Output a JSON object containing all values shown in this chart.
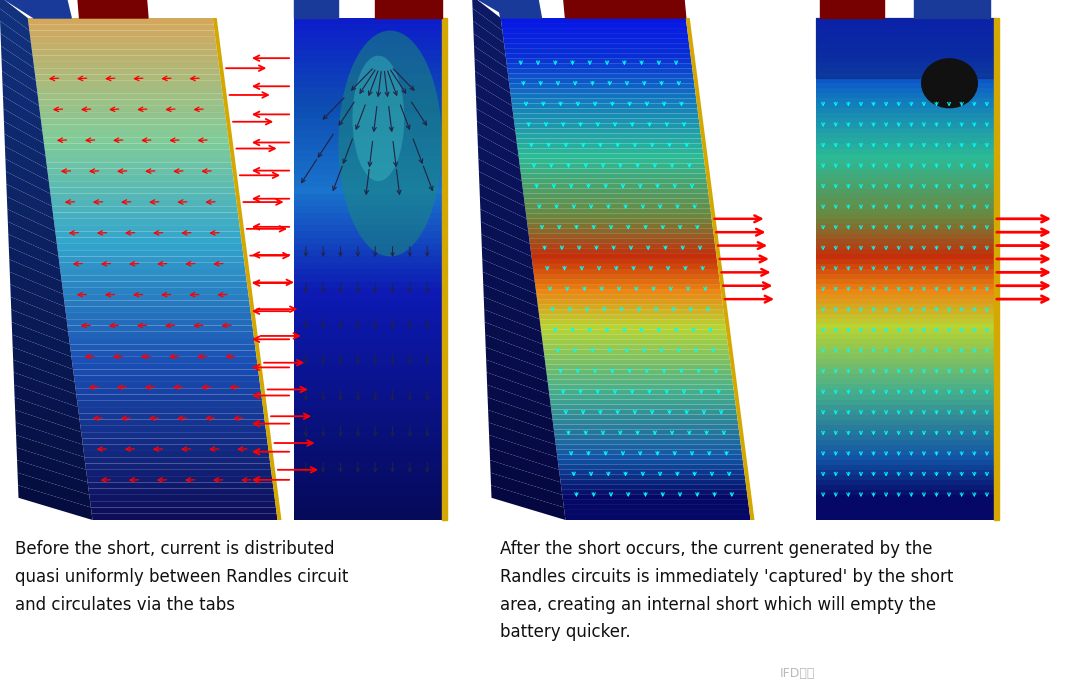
{
  "background_color": "#ffffff",
  "text_left": "Before the short, current is distributed\nquasi uniformly between Randles circuit\nand circulates via the tabs",
  "text_right": "After the short occurs, the current generated by the\nRandles circuits is immediately 'captured' by the short\narea, creating an internal short which will empty the\nbattery quicker.",
  "text_fontsize": 12.0,
  "watermark": "IFD优达",
  "fig_width": 10.8,
  "fig_height": 7.0
}
